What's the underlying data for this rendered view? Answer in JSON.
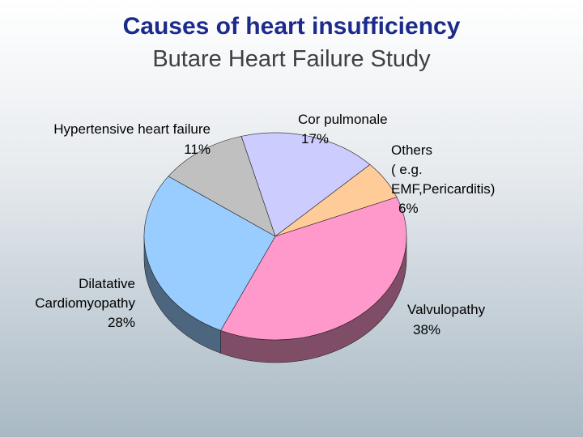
{
  "chart_data": {
    "type": "pie",
    "title": "Causes of heart insufficiency",
    "subtitle": "Butare Heart Failure Study",
    "categories": [
      "Cor pulmonale",
      "Others\n( e.g.\nEMF,Pericarditis)",
      "Valvulopathy",
      "Dilatative\nCardiomyopathy",
      "Hypertensive heart failure"
    ],
    "values": [
      17,
      6,
      38,
      28,
      11
    ],
    "value_labels": [
      "17%",
      "6%",
      "38%",
      "28%",
      "11%"
    ],
    "colors": [
      "#ccccff",
      "#ffcc99",
      "#ff99cc",
      "#99ccff",
      "#c0c0c0"
    ]
  }
}
